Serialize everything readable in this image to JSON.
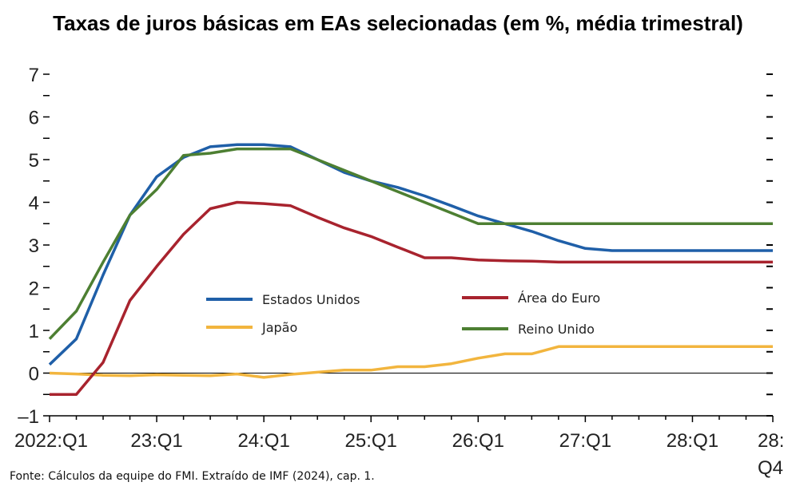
{
  "chart_data": {
    "type": "line",
    "title": "Taxas de juros básicas em EAs selecionadas (em %, média trimestral)",
    "xlabel": "",
    "ylabel": "",
    "ylim": [
      -1,
      7
    ],
    "y_ticks": [
      "7",
      "6",
      "5",
      "4",
      "3",
      "2",
      "1",
      "0",
      "–1"
    ],
    "x_tick_labels": [
      "2022:Q1",
      "23:Q1",
      "24:Q1",
      "25:Q1",
      "26:Q1",
      "27:Q1",
      "28:Q1",
      "28:"
    ],
    "x_tick_label_extra": "Q4",
    "x": [
      "2022:Q1",
      "2022:Q2",
      "2022:Q3",
      "2022:Q4",
      "2023:Q1",
      "2023:Q2",
      "2023:Q3",
      "2023:Q4",
      "2024:Q1",
      "2024:Q2",
      "2024:Q3",
      "2024:Q4",
      "2025:Q1",
      "2025:Q2",
      "2025:Q3",
      "2025:Q4",
      "2026:Q1",
      "2026:Q2",
      "2026:Q3",
      "2026:Q4",
      "2027:Q1",
      "2027:Q2",
      "2027:Q3",
      "2027:Q4",
      "2028:Q1",
      "2028:Q2",
      "2028:Q3",
      "2028:Q4"
    ],
    "series": [
      {
        "name": "Estados Unidos",
        "color": "#1f5fa8",
        "values": [
          0.2,
          0.8,
          2.3,
          3.7,
          4.6,
          5.05,
          5.3,
          5.35,
          5.35,
          5.3,
          5.0,
          4.7,
          4.5,
          4.35,
          4.15,
          3.92,
          3.68,
          3.5,
          3.32,
          3.1,
          2.92,
          2.87,
          2.87,
          2.87,
          2.87,
          2.87,
          2.87,
          2.87
        ]
      },
      {
        "name": "Área do Euro",
        "color": "#a8232e",
        "values": [
          -0.5,
          -0.5,
          0.25,
          1.7,
          2.5,
          3.25,
          3.85,
          4.0,
          3.97,
          3.92,
          3.65,
          3.4,
          3.2,
          2.95,
          2.7,
          2.7,
          2.65,
          2.63,
          2.62,
          2.6,
          2.6,
          2.6,
          2.6,
          2.6,
          2.6,
          2.6,
          2.6,
          2.6
        ]
      },
      {
        "name": "Japão",
        "color": "#f2b53e",
        "values": [
          0.0,
          -0.02,
          -0.05,
          -0.06,
          -0.04,
          -0.05,
          -0.06,
          -0.02,
          -0.1,
          -0.03,
          0.02,
          0.07,
          0.07,
          0.15,
          0.15,
          0.22,
          0.35,
          0.45,
          0.45,
          0.62,
          0.62,
          0.62,
          0.62,
          0.62,
          0.62,
          0.62,
          0.62,
          0.62
        ]
      },
      {
        "name": "Reino Unido",
        "color": "#4d7f32",
        "values": [
          0.8,
          1.45,
          2.6,
          3.7,
          4.3,
          5.1,
          5.15,
          5.25,
          5.25,
          5.25,
          5.0,
          4.75,
          4.5,
          4.25,
          4.0,
          3.75,
          3.5,
          3.5,
          3.5,
          3.5,
          3.5,
          3.5,
          3.5,
          3.5,
          3.5,
          3.5,
          3.5,
          3.5
        ]
      }
    ],
    "legend_placement": "center",
    "source": "Fonte: Cálculos da equipe do FMI. Extraído de IMF (2024), cap. 1."
  }
}
